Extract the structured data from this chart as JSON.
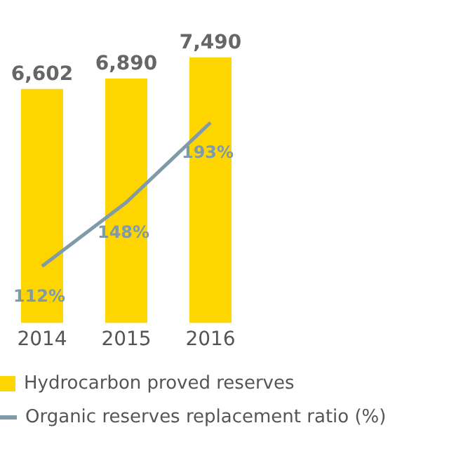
{
  "chart_data": {
    "type": "bar",
    "categories": [
      "2014",
      "2015",
      "2016"
    ],
    "series": [
      {
        "name": "Hydrocarbon proved reserves",
        "color": "#ffd500",
        "values": [
          6602,
          6890,
          7490
        ],
        "value_labels": [
          "6,602",
          "6,890",
          "7,490"
        ]
      },
      {
        "name": "Organic reserves replacement ratio (%)",
        "type": "line",
        "axis": "y2",
        "color": "#7f9aa8",
        "values": [
          112,
          148,
          193
        ],
        "value_labels": [
          "112%",
          "148%",
          "193%"
        ]
      }
    ],
    "legend": "bottom",
    "grid": false,
    "marker": "none",
    "tick_labels": "x"
  }
}
